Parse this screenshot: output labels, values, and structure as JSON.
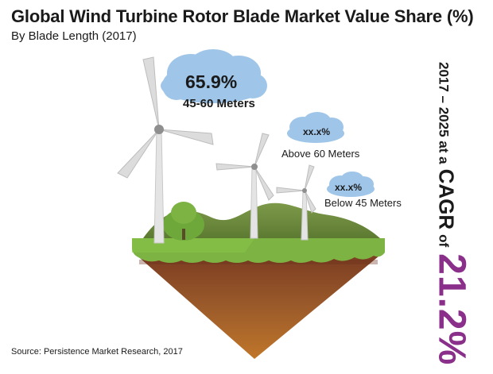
{
  "header": {
    "title": "Global Wind Turbine Rotor Blade Market Value Share (%)",
    "subtitle": "By Blade Length (2017)"
  },
  "segments": [
    {
      "value": "65.9%",
      "label": "45-60 Meters"
    },
    {
      "value": "xx.x%",
      "label": "Above 60 Meters"
    },
    {
      "value": "xx.x%",
      "label": "Below 45 Meters"
    }
  ],
  "cagr": {
    "period_text": "2017 – 2025 at a",
    "cagr_word": "CAGR",
    "of_word": "of",
    "value": "21.2%"
  },
  "source": "Source: Persistence Market Research, 2017",
  "colors": {
    "cloud": "#9fc5e8",
    "cagr_value": "#8a2f8a",
    "grass": "#7cb342",
    "soil": "#8d4a2a",
    "hills": "#6e8b3d"
  }
}
